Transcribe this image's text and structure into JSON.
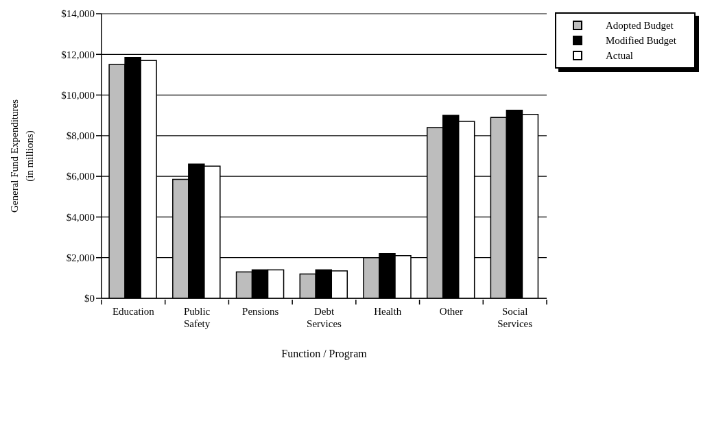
{
  "chart_data": {
    "type": "bar",
    "ylabel": "General Fund Expenditures\n(in millions)",
    "xlabel": "Function / Program",
    "categories": [
      "Education",
      "Public Safety",
      "Pensions",
      "Debt Services",
      "Health",
      "Other",
      "Social Services"
    ],
    "series": [
      {
        "name": "Adopted Budget",
        "color": "#bdbdbd",
        "values": [
          11500,
          5850,
          1300,
          1200,
          2000,
          8400,
          8900
        ]
      },
      {
        "name": "Modified Budget",
        "color": "#000000",
        "values": [
          11850,
          6600,
          1400,
          1400,
          2200,
          9000,
          9250
        ]
      },
      {
        "name": "Actual",
        "color": "#ffffff",
        "values": [
          11700,
          6500,
          1400,
          1350,
          2100,
          8700,
          9050
        ]
      }
    ],
    "ylim": [
      0,
      14000
    ],
    "yticks": [
      {
        "value": 0,
        "label": "$0"
      },
      {
        "value": 2000,
        "label": "$2,000"
      },
      {
        "value": 4000,
        "label": "$4,000"
      },
      {
        "value": 6000,
        "label": "$6,000"
      },
      {
        "value": 8000,
        "label": "$8,000"
      },
      {
        "value": 10000,
        "label": "$10,000"
      },
      {
        "value": 12000,
        "label": "$12,000"
      },
      {
        "value": 14000,
        "label": "$14,000"
      }
    ],
    "grid": "y",
    "legend": "top right"
  }
}
